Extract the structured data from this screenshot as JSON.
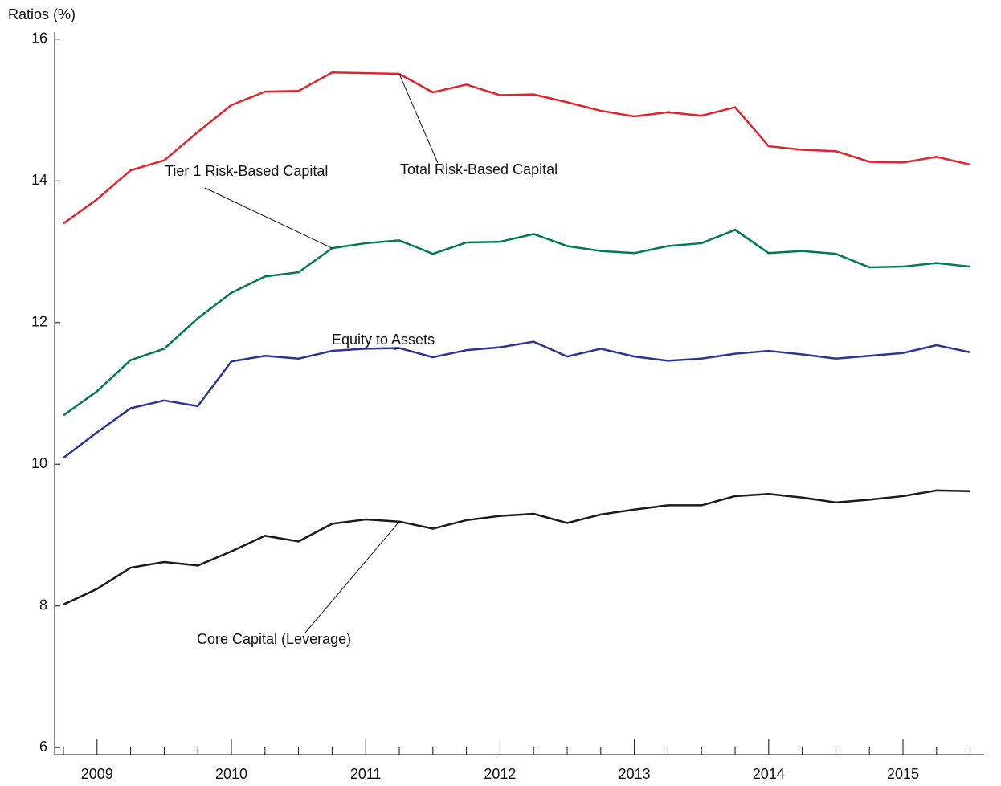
{
  "chart_data": {
    "type": "line",
    "y_label": "Ratios (%)",
    "categories": [
      null,
      "2009",
      null,
      null,
      null,
      "2010",
      null,
      null,
      null,
      "2011",
      null,
      null,
      null,
      "2012",
      null,
      null,
      null,
      "2013",
      null,
      null,
      null,
      "2014",
      null,
      null,
      null,
      "2015",
      null,
      null
    ],
    "ylim": [
      5.9,
      16.1
    ],
    "yticks": [
      6,
      8,
      10,
      12,
      14,
      16
    ],
    "grid": false,
    "series": [
      {
        "name": "Total Risk-Based Capital",
        "color": "#e3232c",
        "values": [
          13.4,
          13.74,
          14.15,
          14.29,
          14.69,
          15.07,
          15.26,
          15.27,
          15.53,
          15.52,
          15.51,
          15.25,
          15.36,
          15.21,
          15.22,
          15.11,
          14.99,
          14.91,
          14.97,
          14.92,
          15.04,
          14.49,
          14.44,
          14.42,
          14.27,
          14.26,
          14.34,
          14.23
        ]
      },
      {
        "name": "Tier 1 Risk-Based Capital",
        "color": "#007a55",
        "values": [
          10.69,
          11.03,
          11.47,
          11.63,
          12.06,
          12.42,
          12.65,
          12.71,
          13.05,
          13.12,
          13.16,
          12.97,
          13.13,
          13.14,
          13.25,
          13.08,
          13.01,
          12.98,
          13.08,
          13.12,
          13.31,
          12.98,
          13.01,
          12.97,
          12.78,
          12.79,
          12.84,
          12.79
        ]
      },
      {
        "name": "Equity to Assets",
        "color": "#2b3592",
        "values": [
          10.09,
          10.45,
          10.79,
          10.9,
          10.82,
          11.45,
          11.53,
          11.49,
          11.6,
          11.63,
          11.64,
          11.51,
          11.61,
          11.65,
          11.73,
          11.52,
          11.63,
          11.52,
          11.46,
          11.49,
          11.56,
          11.6,
          11.55,
          11.49,
          11.53,
          11.57,
          11.68,
          11.58
        ]
      },
      {
        "name": "Core Capital (Leverage)",
        "color": "#1a1a1a",
        "values": [
          8.02,
          8.24,
          8.54,
          8.62,
          8.57,
          8.77,
          8.99,
          8.91,
          9.16,
          9.22,
          9.19,
          9.09,
          9.21,
          9.27,
          9.3,
          9.17,
          9.29,
          9.36,
          9.42,
          9.42,
          9.55,
          9.58,
          9.53,
          9.46,
          9.5,
          9.55,
          9.63,
          9.62
        ]
      }
    ]
  }
}
